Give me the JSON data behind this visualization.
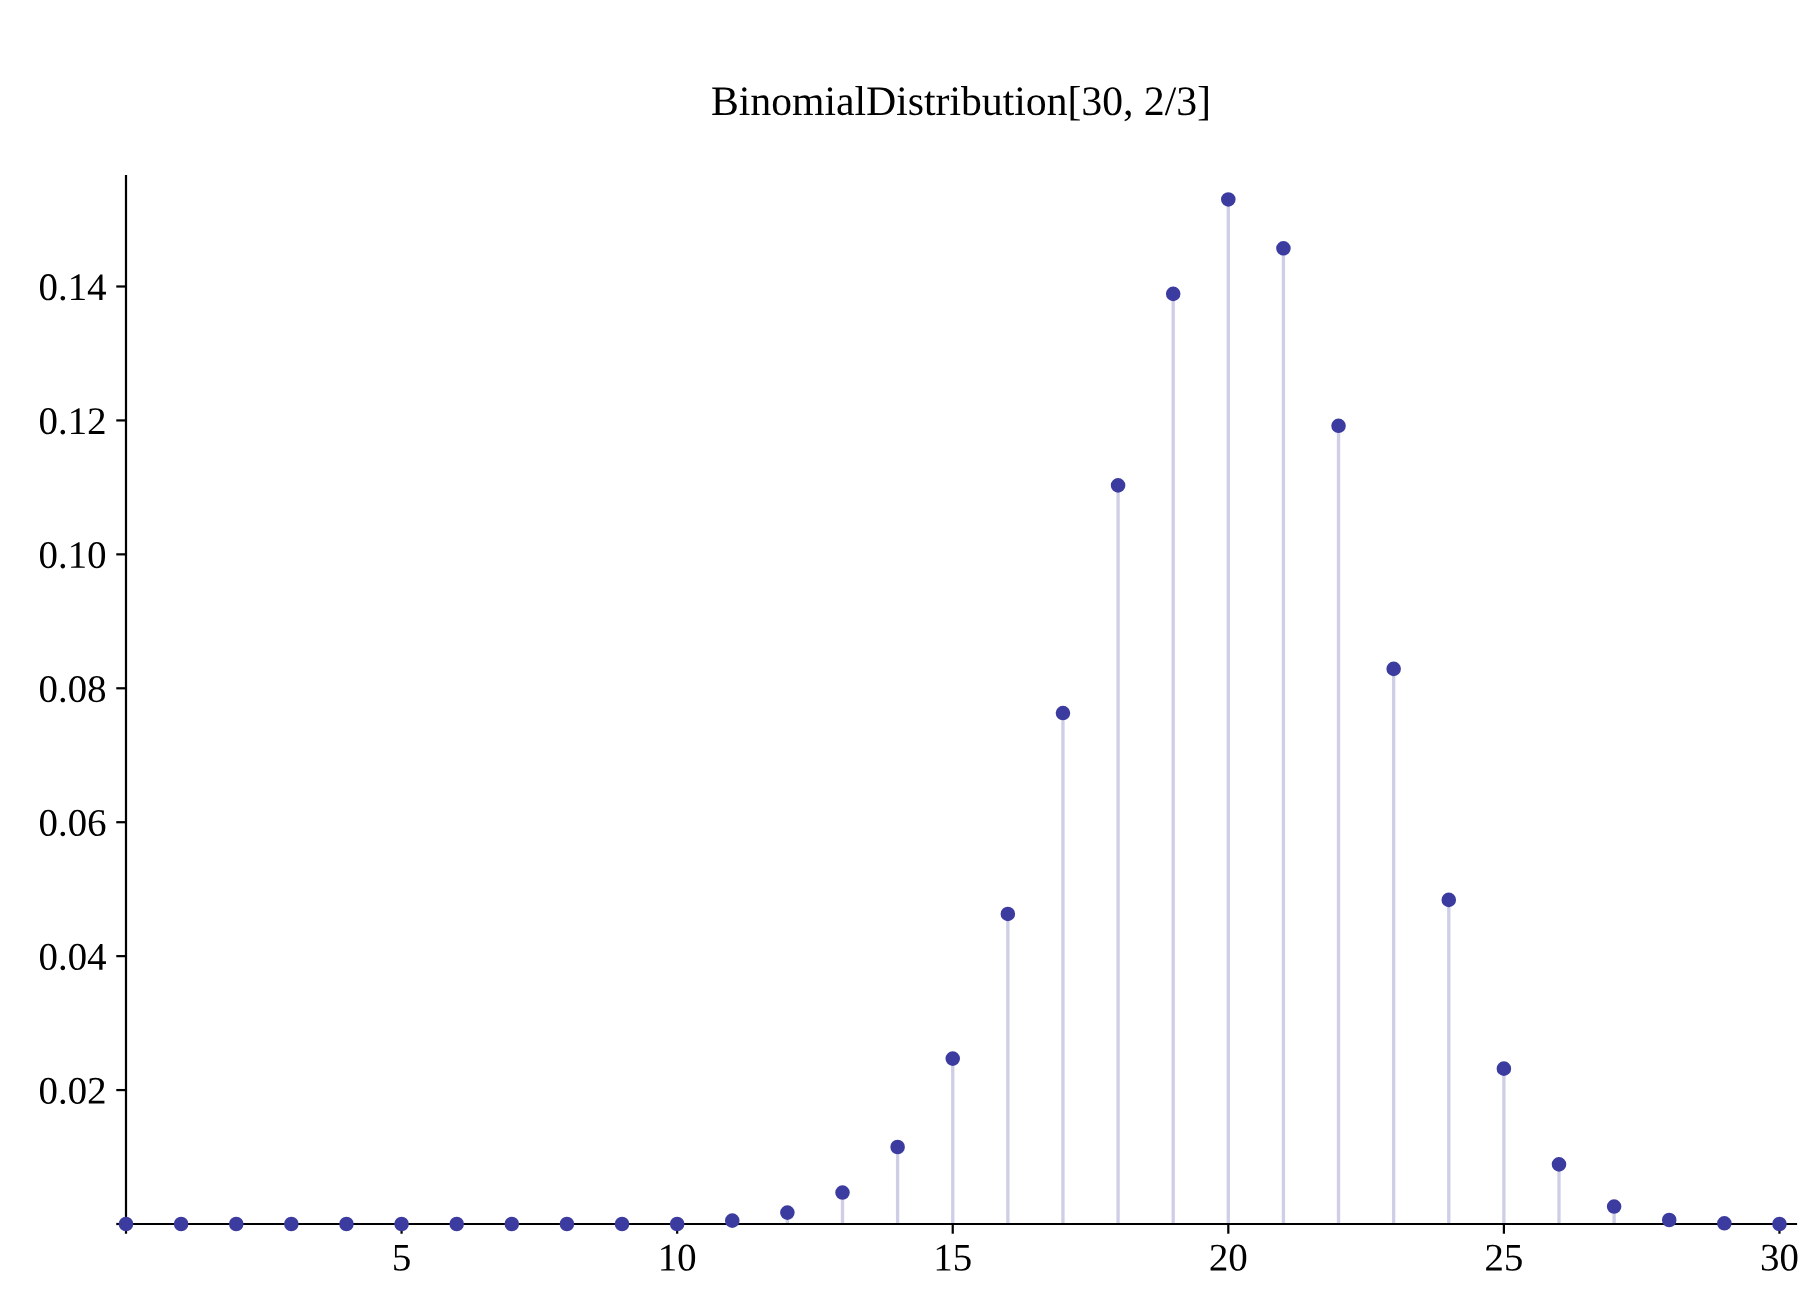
{
  "chart_data": {
    "type": "lollipop",
    "title": "BinomialDistribution[30, 2/3]",
    "x": [
      0,
      1,
      2,
      3,
      4,
      5,
      6,
      7,
      8,
      9,
      10,
      11,
      12,
      13,
      14,
      15,
      16,
      17,
      18,
      19,
      20,
      21,
      22,
      23,
      24,
      25,
      26,
      27,
      28,
      29,
      30
    ],
    "series": [
      {
        "color": "#3c3ca0",
        "values": [
          0,
          0,
          0,
          0,
          0,
          0,
          0,
          0,
          0,
          0,
          0,
          0.0005,
          0.0017,
          0.0047,
          0.0115,
          0.0247,
          0.0463,
          0.0763,
          0.1103,
          0.1389,
          0.153,
          0.1457,
          0.1192,
          0.0829,
          0.0484,
          0.0232,
          0.0089,
          0.0026,
          0.0006,
          0.0001,
          0
        ]
      }
    ],
    "xlim": [
      0,
      30.3
    ],
    "ylim": [
      0,
      0.1565
    ],
    "xticks": [
      {
        "value": 0,
        "label": null
      },
      5,
      10,
      15,
      20,
      25,
      30
    ],
    "yticks": [
      {
        "value": 0,
        "label": null
      },
      0.02,
      0.04,
      0.06,
      0.08,
      {
        "value": 0.1,
        "label": "0.10"
      },
      0.12,
      0.14
    ],
    "marker": "circle",
    "grid": false,
    "legend": false
  }
}
